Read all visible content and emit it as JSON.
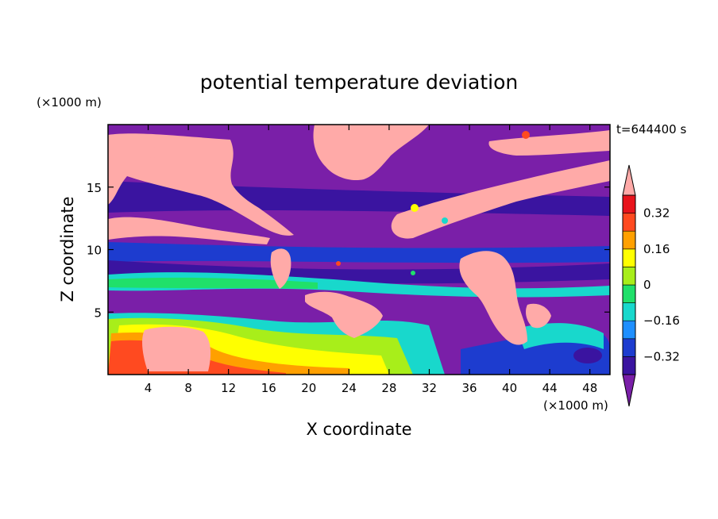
{
  "chart_data": {
    "type": "heatmap",
    "title": "potential temperature deviation",
    "xlabel": "X coordinate",
    "ylabel": "Z coordinate",
    "x_unit": "(×1000 m)",
    "y_unit": "(×1000 m)",
    "time_label": "t=644400 s",
    "xlim": [
      0,
      50
    ],
    "ylim": [
      0,
      20
    ],
    "x_ticks": [
      4,
      8,
      12,
      16,
      20,
      24,
      28,
      32,
      36,
      40,
      44,
      48
    ],
    "y_ticks": [
      5,
      10,
      15
    ],
    "colorbar": {
      "levels": [
        -0.4,
        -0.32,
        -0.24,
        -0.16,
        -0.08,
        0,
        0.08,
        0.16,
        0.24,
        0.32,
        0.4
      ],
      "labels": [
        "0.32",
        "0.16",
        "0",
        "−0.16",
        "−0.32"
      ],
      "label_values": [
        0.32,
        0.16,
        0,
        -0.16,
        -0.32
      ],
      "colors": [
        "#7a1fa8",
        "#3a14a0",
        "#1d3ccf",
        "#1e8fff",
        "#18d8cc",
        "#20e06a",
        "#a8ee1a",
        "#ffff00",
        "#ffa000",
        "#ff4a20",
        "#e8141c",
        "#ffaaa8"
      ],
      "extend": "both"
    }
  }
}
